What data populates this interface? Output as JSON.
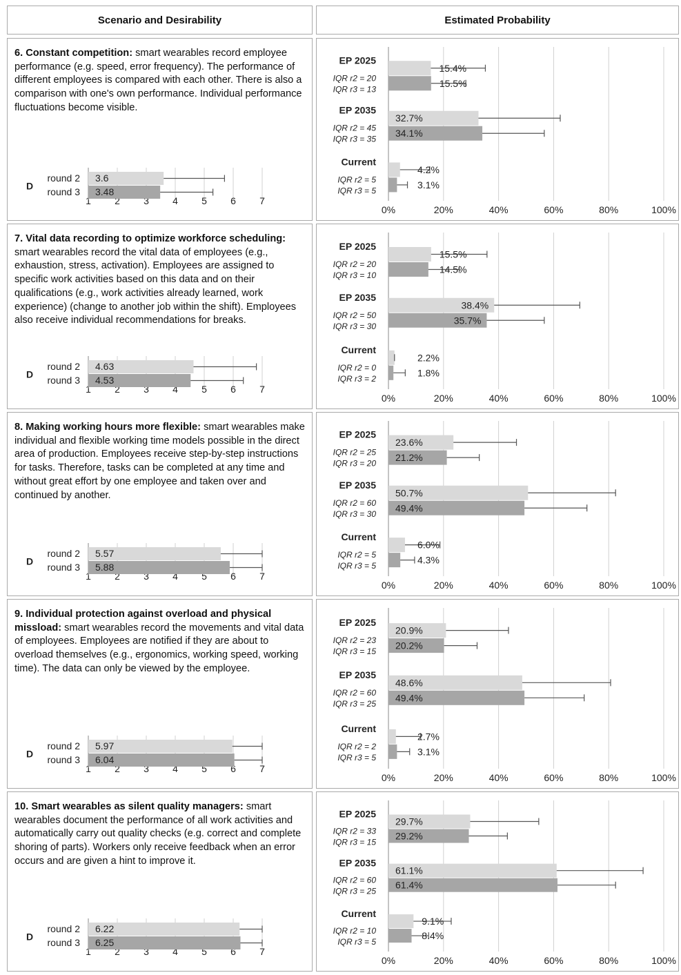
{
  "headers": {
    "left": "Scenario and Desirability",
    "right": "Estimated Probability"
  },
  "labels": {
    "desirability": "D",
    "round2": "round 2",
    "round3": "round 3",
    "ep2025": "EP 2025",
    "ep2035": "EP 2035",
    "current": "Current"
  },
  "colors": {
    "round2": "#d9d9d9",
    "round3": "#a6a6a6",
    "grid": "#d0d0d0",
    "border": "#a9a9a9",
    "errorbar": "#555555"
  },
  "scenarios": [
    {
      "title": "6. Constant competition:",
      "text": " smart wearables record employee performance (e.g. speed, error frequency). The performance of different employees is compared with each other. There is also a comparison with one's own performance. Individual performance fluctuations become visible."
    },
    {
      "title": "7. Vital data recording to optimize workforce scheduling:",
      "text": " smart wearables record the vital data of employees (e.g., exhaustion, stress, activation). Employees are assigned to specific work activities based on this data and on their qualifications (e.g., work activities already learned, work experience) (change to another job within the shift). Employees also receive individual recommendations for breaks."
    },
    {
      "title": "8. Making working hours more flexible:",
      "text": " smart wearables make individual and flexible working time models possible in the direct area of production. Employees receive step-by-step instructions for tasks. Therefore, tasks can be completed at any time and without great effort by one employee and taken over and continued by another."
    },
    {
      "title": "9. Individual protection against overload and physical missload:",
      "text": " smart wearables record the movements and vital data of employees. Employees are notified if they are about to overload themselves (e.g., ergonomics, working speed, working time). The data can only be viewed by the employee."
    },
    {
      "title": "10. Smart wearables as silent quality managers:",
      "text": " smart wearables document the performance of all work activities and automatically carry out quality checks (e.g. correct and complete shoring of parts). Workers only receive feedback when an error occurs and are given a hint to improve it."
    }
  ],
  "chart_data": [
    {
      "type": "bar",
      "orientation": "horizontal",
      "scenario": 6,
      "chart": "desirability",
      "xlim": [
        1,
        7
      ],
      "xticks": [
        "1",
        "2",
        "3",
        "4",
        "5",
        "6",
        "7"
      ],
      "series": [
        {
          "name": "round 2",
          "value": 3.6,
          "label": "3.6",
          "err_high": 5.7
        },
        {
          "name": "round 3",
          "value": 3.48,
          "label": "3.48",
          "err_high": 5.3
        }
      ]
    },
    {
      "type": "bar",
      "orientation": "horizontal",
      "scenario": 6,
      "chart": "estimated_probability",
      "xlim": [
        0,
        100
      ],
      "xticks": [
        "0%",
        "20%",
        "40%",
        "60%",
        "80%",
        "100%"
      ],
      "grid": true,
      "groups": [
        {
          "name": "EP 2025",
          "iqr": [
            "IQR r2 = 20",
            "IQR r3 = 13"
          ],
          "labelpos": "outside",
          "bars": [
            {
              "value": 15.4,
              "label": "15.4%",
              "err_high": 35.2
            },
            {
              "value": 15.5,
              "label": "15.5%",
              "err_high": 28.1
            }
          ]
        },
        {
          "name": "EP 2035",
          "iqr": [
            "IQR r2 = 45",
            "IQR r3 = 35"
          ],
          "labelpos": "inside",
          "bars": [
            {
              "value": 32.7,
              "label": "32.7%",
              "err_high": 62.4
            },
            {
              "value": 34.1,
              "label": "34.1%",
              "err_high": 56.6
            }
          ]
        },
        {
          "name": "Current",
          "iqr": [
            "IQR r2 = 5",
            "IQR r3 = 5"
          ],
          "labelpos": "outside",
          "bars": [
            {
              "value": 4.2,
              "label": "4.2%",
              "err_high": 15.0
            },
            {
              "value": 3.1,
              "label": "3.1%",
              "err_high": 6.9
            }
          ]
        }
      ]
    },
    {
      "type": "bar",
      "orientation": "horizontal",
      "scenario": 7,
      "chart": "desirability",
      "xlim": [
        1,
        7
      ],
      "xticks": [
        "1",
        "2",
        "3",
        "4",
        "5",
        "6",
        "7"
      ],
      "series": [
        {
          "name": "round 2",
          "value": 4.63,
          "label": "4.63",
          "err_high": 6.8
        },
        {
          "name": "round 3",
          "value": 4.53,
          "label": "4.53",
          "err_high": 6.35
        }
      ]
    },
    {
      "type": "bar",
      "orientation": "horizontal",
      "scenario": 7,
      "chart": "estimated_probability",
      "xlim": [
        0,
        100
      ],
      "xticks": [
        "0%",
        "20%",
        "40%",
        "60%",
        "80%",
        "100%"
      ],
      "grid": true,
      "groups": [
        {
          "name": "EP 2025",
          "iqr": [
            "IQR r2 = 20",
            "IQR r3 = 10"
          ],
          "labelpos": "outside",
          "bars": [
            {
              "value": 15.5,
              "label": "15.5%",
              "err_high": 35.8
            },
            {
              "value": 14.5,
              "label": "14.5%",
              "err_high": 25.7
            }
          ]
        },
        {
          "name": "EP 2035",
          "iqr": [
            "IQR r2 = 50",
            "IQR r3 = 30"
          ],
          "labelpos": "inside-right",
          "bars": [
            {
              "value": 38.4,
              "label": "38.4%",
              "err_high": 69.5
            },
            {
              "value": 35.7,
              "label": "35.7%",
              "err_high": 56.6
            }
          ]
        },
        {
          "name": "Current",
          "iqr": [
            "IQR r2 = 0",
            "IQR r3 = 2"
          ],
          "labelpos": "outside",
          "bars": [
            {
              "value": 2.2,
              "label": "2.2%",
              "err_high": 2.2
            },
            {
              "value": 1.8,
              "label": "1.8%",
              "err_high": 6.1
            }
          ]
        }
      ]
    },
    {
      "type": "bar",
      "orientation": "horizontal",
      "scenario": 8,
      "chart": "desirability",
      "xlim": [
        1,
        7
      ],
      "xticks": [
        "1",
        "2",
        "3",
        "4",
        "5",
        "6",
        "7"
      ],
      "series": [
        {
          "name": "round 2",
          "value": 5.57,
          "label": "5.57",
          "err_high": 7.0
        },
        {
          "name": "round 3",
          "value": 5.88,
          "label": "5.88",
          "err_high": 7.0
        }
      ]
    },
    {
      "type": "bar",
      "orientation": "horizontal",
      "scenario": 8,
      "chart": "estimated_probability",
      "xlim": [
        0,
        100
      ],
      "xticks": [
        "0%",
        "20%",
        "40%",
        "60%",
        "80%",
        "100%"
      ],
      "grid": true,
      "groups": [
        {
          "name": "EP 2025",
          "iqr": [
            "IQR r2 = 25",
            "IQR r3 = 20"
          ],
          "labelpos": "inside",
          "bars": [
            {
              "value": 23.6,
              "label": "23.6%",
              "err_high": 46.5
            },
            {
              "value": 21.2,
              "label": "21.2%",
              "err_high": 33.0
            }
          ]
        },
        {
          "name": "EP 2035",
          "iqr": [
            "IQR r2 = 60",
            "IQR r3 = 30"
          ],
          "labelpos": "inside",
          "bars": [
            {
              "value": 50.7,
              "label": "50.7%",
              "err_high": 82.5
            },
            {
              "value": 49.4,
              "label": "49.4%",
              "err_high": 72.1
            }
          ]
        },
        {
          "name": "Current",
          "iqr": [
            "IQR r2 = 5",
            "IQR r3 = 5"
          ],
          "labelpos": "outside",
          "bars": [
            {
              "value": 6.0,
              "label": "6.0%",
              "err_high": 18.7
            },
            {
              "value": 4.3,
              "label": "4.3%",
              "err_high": 9.5
            }
          ]
        }
      ]
    },
    {
      "type": "bar",
      "orientation": "horizontal",
      "scenario": 9,
      "chart": "desirability",
      "xlim": [
        1,
        7
      ],
      "xticks": [
        "1",
        "2",
        "3",
        "4",
        "5",
        "6",
        "7"
      ],
      "series": [
        {
          "name": "round 2",
          "value": 5.97,
          "label": "5.97",
          "err_high": 7.0
        },
        {
          "name": "round 3",
          "value": 6.04,
          "label": "6.04",
          "err_high": 7.0
        }
      ]
    },
    {
      "type": "bar",
      "orientation": "horizontal",
      "scenario": 9,
      "chart": "estimated_probability",
      "xlim": [
        0,
        100
      ],
      "xticks": [
        "0%",
        "20%",
        "40%",
        "60%",
        "80%",
        "100%"
      ],
      "grid": true,
      "groups": [
        {
          "name": "EP 2025",
          "iqr": [
            "IQR r2 = 23",
            "IQR r3 = 15"
          ],
          "labelpos": "inside",
          "bars": [
            {
              "value": 20.9,
              "label": "20.9%",
              "err_high": 43.6
            },
            {
              "value": 20.2,
              "label": "20.2%",
              "err_high": 32.2
            }
          ]
        },
        {
          "name": "EP 2035",
          "iqr": [
            "IQR r2 = 60",
            "IQR r3 = 25"
          ],
          "labelpos": "inside",
          "bars": [
            {
              "value": 48.6,
              "label": "48.6%",
              "err_high": 80.7
            },
            {
              "value": 49.4,
              "label": "49.4%",
              "err_high": 71.1
            }
          ]
        },
        {
          "name": "Current",
          "iqr": [
            "IQR r2 = 2",
            "IQR r3 = 5"
          ],
          "labelpos": "outside",
          "bars": [
            {
              "value": 2.7,
              "label": "2.7%",
              "err_high": 11.7
            },
            {
              "value": 3.1,
              "label": "3.1%",
              "err_high": 7.7
            }
          ]
        }
      ]
    },
    {
      "type": "bar",
      "orientation": "horizontal",
      "scenario": 10,
      "chart": "desirability",
      "xlim": [
        1,
        7
      ],
      "xticks": [
        "1",
        "2",
        "3",
        "4",
        "5",
        "6",
        "7"
      ],
      "series": [
        {
          "name": "round 2",
          "value": 6.22,
          "label": "6.22",
          "err_high": 7.0
        },
        {
          "name": "round 3",
          "value": 6.25,
          "label": "6.25",
          "err_high": 7.0
        }
      ]
    },
    {
      "type": "bar",
      "orientation": "horizontal",
      "scenario": 10,
      "chart": "estimated_probability",
      "xlim": [
        0,
        100
      ],
      "xticks": [
        "0%",
        "20%",
        "40%",
        "60%",
        "80%",
        "100%"
      ],
      "grid": true,
      "groups": [
        {
          "name": "EP 2025",
          "iqr": [
            "IQR r2 = 33",
            "IQR r3 = 15"
          ],
          "labelpos": "inside",
          "bars": [
            {
              "value": 29.7,
              "label": "29.7%",
              "err_high": 54.6
            },
            {
              "value": 29.2,
              "label": "29.2%",
              "err_high": 43.2
            }
          ]
        },
        {
          "name": "EP 2035",
          "iqr": [
            "IQR r2 = 60",
            "IQR r3 = 25"
          ],
          "labelpos": "inside",
          "bars": [
            {
              "value": 61.1,
              "label": "61.1%",
              "err_high": 92.5
            },
            {
              "value": 61.4,
              "label": "61.4%",
              "err_high": 82.5
            }
          ]
        },
        {
          "name": "Current",
          "iqr": [
            "IQR r2 = 10",
            "IQR r3 = 5"
          ],
          "labelpos": "outside",
          "bars": [
            {
              "value": 9.1,
              "label": "9.1%",
              "err_high": 22.8
            },
            {
              "value": 8.4,
              "label": "8.4%",
              "err_high": 14.6
            }
          ]
        }
      ]
    }
  ]
}
